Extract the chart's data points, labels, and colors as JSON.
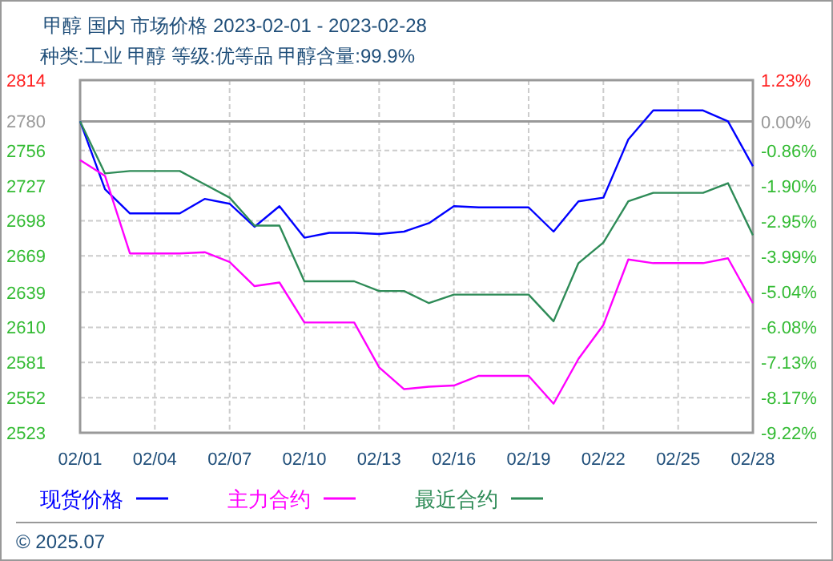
{
  "chart_data": {
    "type": "line",
    "title": "甲醇  国内  市场价格  2023-02-01 - 2023-02-28",
    "subtitle": "种类:工业 甲醇  等级:优等品  甲醇含量:99.9%",
    "x": [
      "2023-02-01",
      "2023-02-02",
      "2023-02-03",
      "2023-02-04",
      "2023-02-05",
      "2023-02-06",
      "2023-02-07",
      "2023-02-08",
      "2023-02-09",
      "2023-02-10",
      "2023-02-11",
      "2023-02-12",
      "2023-02-13",
      "2023-02-14",
      "2023-02-15",
      "2023-02-16",
      "2023-02-17",
      "2023-02-18",
      "2023-02-19",
      "2023-02-20",
      "2023-02-21",
      "2023-02-22",
      "2023-02-23",
      "2023-02-24",
      "2023-02-25",
      "2023-02-26",
      "2023-02-27",
      "2023-02-28"
    ],
    "series": [
      {
        "name": "现货价格",
        "color": "#0000ff",
        "values": [
          2780,
          2724,
          2704,
          2704,
          2704,
          2716,
          2712,
          2693,
          2710,
          2684,
          2688,
          2688,
          2687,
          2689,
          2696,
          2710,
          2709,
          2709,
          2709,
          2689,
          2714,
          2717,
          2765,
          2789,
          2789,
          2789,
          2780,
          2743
        ]
      },
      {
        "name": "主力合约",
        "color": "#ff00ff",
        "values": [
          2748,
          2735,
          2671,
          2671,
          2671,
          2672,
          2664,
          2644,
          2647,
          2614,
          2614,
          2614,
          2577,
          2559,
          2561,
          2562,
          2570,
          2570,
          2570,
          2547,
          2584,
          2612,
          2666,
          2663,
          2663,
          2663,
          2667,
          2630
        ]
      },
      {
        "name": "最近合约",
        "color": "#2e8b57",
        "values": [
          2780,
          2737,
          2739,
          2739,
          2739,
          2728,
          2717,
          2694,
          2694,
          2648,
          2648,
          2648,
          2640,
          2640,
          2630,
          2637,
          2637,
          2637,
          2637,
          2615,
          2663,
          2680,
          2714,
          2721,
          2721,
          2721,
          2729,
          2686
        ]
      }
    ],
    "xlim": [
      "2023-02-01",
      "2023-02-28"
    ],
    "xticks": [
      {
        "value": "2023-02-01",
        "label": "02/01"
      },
      {
        "value": "2023-02-04",
        "label": "02/04"
      },
      {
        "value": "2023-02-07",
        "label": "02/07"
      },
      {
        "value": "2023-02-10",
        "label": "02/10"
      },
      {
        "value": "2023-02-13",
        "label": "02/13"
      },
      {
        "value": "2023-02-16",
        "label": "02/16"
      },
      {
        "value": "2023-02-19",
        "label": "02/19"
      },
      {
        "value": "2023-02-22",
        "label": "02/22"
      },
      {
        "value": "2023-02-25",
        "label": "02/25"
      },
      {
        "value": "2023-02-28",
        "label": "02/28"
      }
    ],
    "ylim": [
      2523,
      2814
    ],
    "yticks": [
      2523,
      2552,
      2581,
      2610,
      2639,
      2669,
      2698,
      2727,
      2756,
      2780,
      2814
    ],
    "y2lim": [
      -9.22,
      1.23
    ],
    "y2ticks": [
      {
        "value": -9.22,
        "label": "-9.22%"
      },
      {
        "value": -8.17,
        "label": "-8.17%"
      },
      {
        "value": -7.13,
        "label": "-7.13%"
      },
      {
        "value": -6.08,
        "label": "-6.08%"
      },
      {
        "value": -5.04,
        "label": "-5.04%"
      },
      {
        "value": -3.99,
        "label": "-3.99%"
      },
      {
        "value": -2.95,
        "label": "-2.95%"
      },
      {
        "value": -1.9,
        "label": "-1.90%"
      },
      {
        "value": -0.86,
        "label": "-0.86%"
      },
      {
        "value": 0,
        "label": "0.00%"
      },
      {
        "value": 1.23,
        "label": "1.23%"
      }
    ],
    "ref_lines": [
      {
        "axis": "y",
        "value": 2780,
        "color": "#999999"
      }
    ],
    "grid": true,
    "legend": "bottom",
    "line_style": "solid",
    "marker": "none",
    "annotations": [
      "© 2025.07"
    ]
  }
}
